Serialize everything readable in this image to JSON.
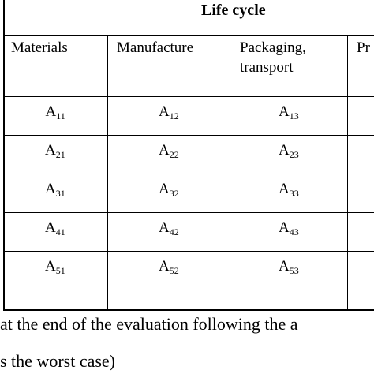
{
  "table": {
    "group_header": "Life cycle",
    "columns": [
      "Materials",
      "Manufacture",
      "Packaging, transport",
      "Pr"
    ],
    "rows": [
      [
        {
          "base": "A",
          "sub": "11"
        },
        {
          "base": "A",
          "sub": "12"
        },
        {
          "base": "A",
          "sub": "13"
        }
      ],
      [
        {
          "base": "A",
          "sub": "21"
        },
        {
          "base": "A",
          "sub": "22"
        },
        {
          "base": "A",
          "sub": "23"
        }
      ],
      [
        {
          "base": "A",
          "sub": "31"
        },
        {
          "base": "A",
          "sub": "32"
        },
        {
          "base": "A",
          "sub": "33"
        }
      ],
      [
        {
          "base": "A",
          "sub": "41"
        },
        {
          "base": "A",
          "sub": "42"
        },
        {
          "base": "A",
          "sub": "43"
        }
      ],
      [
        {
          "base": "A",
          "sub": "51"
        },
        {
          "base": "A",
          "sub": "52"
        },
        {
          "base": "A",
          "sub": "53"
        }
      ]
    ]
  },
  "caption": {
    "line1": "at the end of the evaluation following the a",
    "line2": "s the worst case)"
  }
}
